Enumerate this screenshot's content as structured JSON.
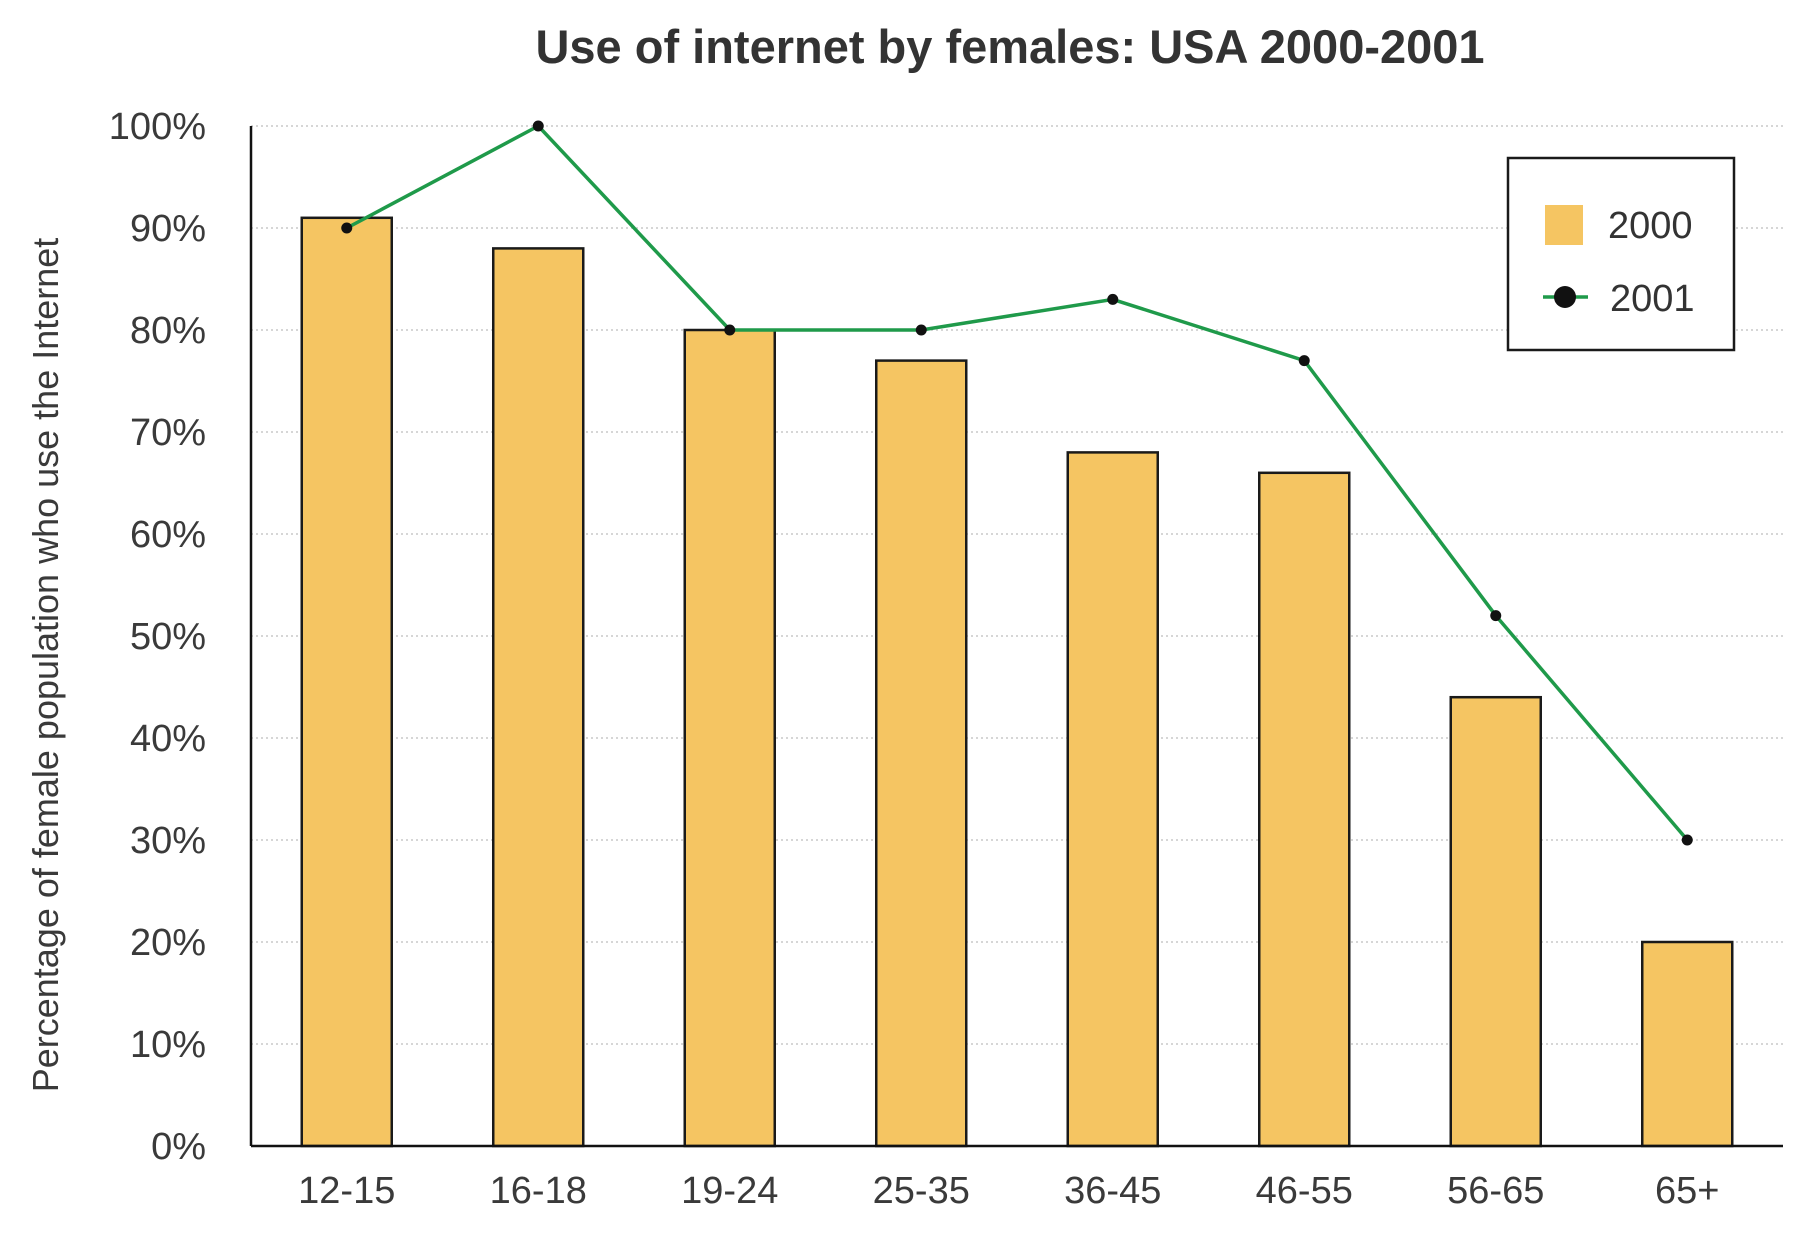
{
  "chart_data": {
    "type": "bar",
    "title": "Use of internet by females: USA 2000-2001",
    "xlabel": "",
    "ylabel": "Percentage of female population who use the Internet",
    "categories": [
      "12-15",
      "16-18",
      "19-24",
      "25-35",
      "36-45",
      "46-55",
      "56-65",
      "65+"
    ],
    "series": [
      {
        "name": "2000",
        "kind": "bar",
        "color": "#f5c562",
        "values": [
          91,
          88,
          80,
          77,
          68,
          66,
          44,
          20
        ]
      },
      {
        "name": "2001",
        "kind": "line",
        "color": "#1f9a4a",
        "values": [
          90,
          100,
          80,
          80,
          83,
          77,
          52,
          30
        ]
      }
    ],
    "ylim": [
      0,
      100
    ],
    "yticks": [
      0,
      10,
      20,
      30,
      40,
      50,
      60,
      70,
      80,
      90,
      100
    ],
    "ytick_labels": [
      "0%",
      "10%",
      "20%",
      "30%",
      "40%",
      "50%",
      "60%",
      "70%",
      "80%",
      "90%",
      "100%"
    ],
    "grid": true,
    "legend_position": "top-right"
  }
}
